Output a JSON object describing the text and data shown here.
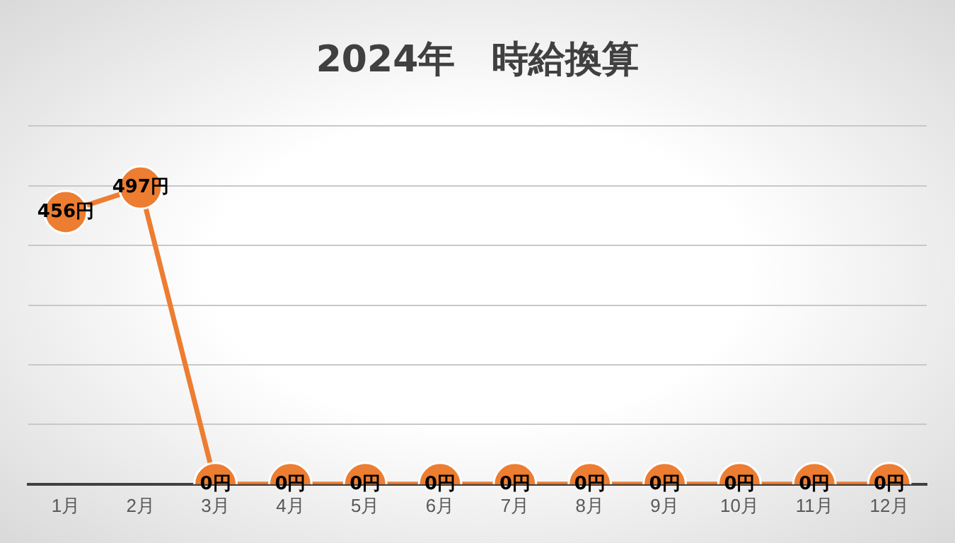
{
  "chart_data": {
    "type": "line",
    "title": "2024年　時給換算",
    "categories": [
      "1月",
      "2月",
      "3月",
      "4月",
      "5月",
      "6月",
      "7月",
      "8月",
      "9月",
      "10月",
      "11月",
      "12月"
    ],
    "series": [
      {
        "color": "#ed7d31",
        "values": [
          456,
          497,
          0,
          0,
          0,
          0,
          0,
          0,
          0,
          0,
          0,
          0
        ],
        "value_labels": [
          "456円",
          "497円",
          "0円",
          "0円",
          "0円",
          "0円",
          "0円",
          "0円",
          "0円",
          "0円",
          "0円",
          "0円"
        ]
      }
    ],
    "ylim": [
      0,
      600
    ],
    "yticks": [
      {
        "value": 0,
        "label": null
      },
      {
        "value": 100,
        "label": null
      },
      {
        "value": 200,
        "label": null
      },
      {
        "value": 300,
        "label": null
      },
      {
        "value": 400,
        "label": null
      },
      {
        "value": 500,
        "label": null
      },
      {
        "value": 600,
        "label": null
      }
    ],
    "grid": "y",
    "legend": false,
    "tick_labels": "x",
    "marker": "circle",
    "line_style": "solid"
  }
}
